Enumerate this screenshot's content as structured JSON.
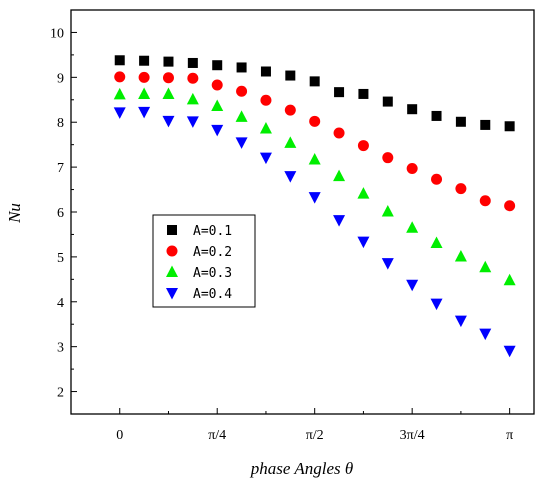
{
  "chart_data": {
    "type": "scatter",
    "title": "",
    "xlabel": "phase Angles θ",
    "ylabel": "Nu",
    "x_unit": "radians",
    "xlim": [
      -0.3927,
      3.3379
    ],
    "ylim": [
      1.5,
      10.5
    ],
    "x_ticks": [
      {
        "value": 0,
        "label": "0"
      },
      {
        "value": 0.7854,
        "label": "π/4"
      },
      {
        "value": 1.5708,
        "label": "π/2"
      },
      {
        "value": 2.3562,
        "label": "3π/4"
      },
      {
        "value": 3.1416,
        "label": "π"
      }
    ],
    "y_ticks": [
      2,
      3,
      4,
      5,
      6,
      7,
      8,
      9,
      10
    ],
    "grid": false,
    "legend_position": "center-left",
    "x": [
      0,
      0.19635,
      0.3927,
      0.58905,
      0.7854,
      0.98175,
      1.1781,
      1.37445,
      1.5708,
      1.76715,
      1.9635,
      2.15985,
      2.3562,
      2.55255,
      2.7489,
      2.94525,
      3.1416
    ],
    "series": [
      {
        "name": "A=0.1",
        "marker": "square",
        "color": "#000000",
        "values": [
          9.38,
          9.37,
          9.35,
          9.32,
          9.27,
          9.22,
          9.13,
          9.04,
          8.91,
          8.67,
          8.63,
          8.46,
          8.29,
          8.14,
          8.01,
          7.94,
          7.91
        ]
      },
      {
        "name": "A=0.2",
        "marker": "circle",
        "color": "#ff0000",
        "values": [
          9.01,
          9.0,
          8.99,
          8.98,
          8.83,
          8.69,
          8.49,
          8.27,
          8.02,
          7.76,
          7.48,
          7.21,
          6.97,
          6.73,
          6.52,
          6.25,
          6.14
        ]
      },
      {
        "name": "A=0.3",
        "marker": "triangle-up",
        "color": "#00ee00",
        "values": [
          8.62,
          8.63,
          8.63,
          8.51,
          8.36,
          8.12,
          7.86,
          7.54,
          7.17,
          6.8,
          6.41,
          6.01,
          5.65,
          5.31,
          5.01,
          4.77,
          4.48
        ]
      },
      {
        "name": "A=0.4",
        "marker": "triangle-down",
        "color": "#0000ff",
        "values": [
          8.22,
          8.23,
          8.03,
          8.02,
          7.83,
          7.55,
          7.21,
          6.8,
          6.33,
          5.82,
          5.34,
          4.86,
          4.38,
          3.96,
          3.58,
          3.29,
          2.91
        ]
      }
    ]
  }
}
